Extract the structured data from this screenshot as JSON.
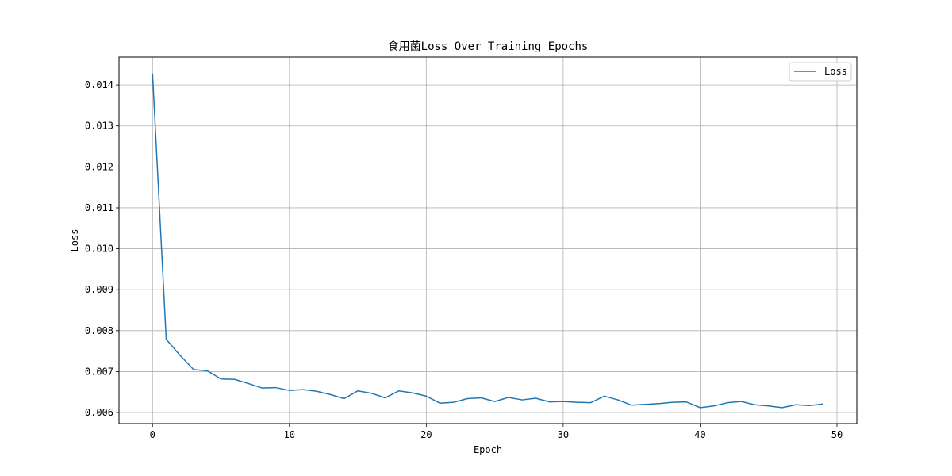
{
  "chart_data": {
    "type": "line",
    "title": "食用菌Loss Over Training Epochs",
    "xlabel": "Epoch",
    "ylabel": "Loss",
    "xlim": [
      -2.45,
      51.45
    ],
    "ylim": [
      0.00573,
      0.01468
    ],
    "xticks": [
      0,
      10,
      20,
      30,
      40,
      50
    ],
    "yticks": [
      0.006,
      0.007,
      0.008,
      0.009,
      0.01,
      0.011,
      0.012,
      0.013,
      0.014
    ],
    "ytick_labels": [
      "0.006",
      "0.007",
      "0.008",
      "0.009",
      "0.010",
      "0.011",
      "0.012",
      "0.013",
      "0.014"
    ],
    "grid": true,
    "legend_position": "top-right",
    "line_color": "#1f77b4",
    "series": [
      {
        "name": "Loss",
        "x": [
          0,
          1,
          2,
          3,
          4,
          5,
          6,
          7,
          8,
          9,
          10,
          11,
          12,
          13,
          14,
          15,
          16,
          17,
          18,
          19,
          20,
          21,
          22,
          23,
          24,
          25,
          26,
          27,
          28,
          29,
          30,
          31,
          32,
          33,
          34,
          35,
          36,
          37,
          38,
          39,
          40,
          41,
          42,
          43,
          44,
          45,
          46,
          47,
          48,
          49
        ],
        "values": [
          0.01428,
          0.00779,
          0.0074,
          0.00705,
          0.00702,
          0.00682,
          0.00681,
          0.00671,
          0.0066,
          0.00661,
          0.00654,
          0.00656,
          0.00652,
          0.00644,
          0.00634,
          0.00653,
          0.00647,
          0.00636,
          0.00653,
          0.00648,
          0.0064,
          0.00623,
          0.00625,
          0.00634,
          0.00636,
          0.00627,
          0.00637,
          0.00631,
          0.00635,
          0.00626,
          0.00627,
          0.00625,
          0.00624,
          0.0064,
          0.00631,
          0.00618,
          0.0062,
          0.00622,
          0.00625,
          0.00626,
          0.00612,
          0.00616,
          0.00624,
          0.00627,
          0.00619,
          0.00616,
          0.00612,
          0.00619,
          0.00617,
          0.00621
        ]
      }
    ]
  }
}
